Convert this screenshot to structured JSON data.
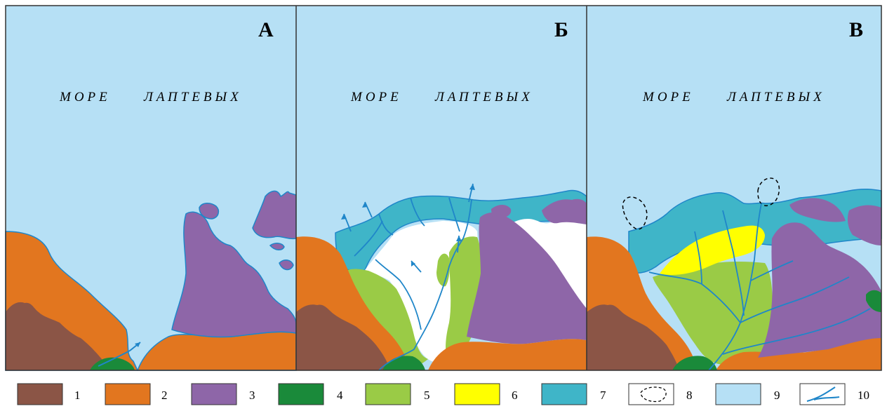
{
  "panels": [
    {
      "letter": "А",
      "sea_label_word1": "МОРЕ",
      "sea_label_word2": "ЛАПТЕВЫХ"
    },
    {
      "letter": "Б",
      "sea_label_word1": "МОРЕ",
      "sea_label_word2": "ЛАПТЕВЫХ"
    },
    {
      "letter": "В",
      "sea_label_word1": "МОРЕ",
      "sea_label_word2": "ЛАПТЕВЫХ"
    }
  ],
  "legend": [
    {
      "number": "1",
      "color": "#8b5546",
      "symbol": "brown-swatch"
    },
    {
      "number": "2",
      "color": "#e2761f",
      "symbol": "orange-swatch"
    },
    {
      "number": "3",
      "color": "#8e66a8",
      "symbol": "purple-swatch"
    },
    {
      "number": "4",
      "color": "#1a8a3a",
      "symbol": "dark-green-swatch"
    },
    {
      "number": "5",
      "color": "#9acb46",
      "symbol": "light-green-swatch"
    },
    {
      "number": "6",
      "color": "#ffff00",
      "symbol": "yellow-swatch"
    },
    {
      "number": "7",
      "color": "#3fb5c8",
      "symbol": "teal-swatch"
    },
    {
      "number": "8",
      "color": "#ffffff",
      "symbol": "dashed-contour"
    },
    {
      "number": "9",
      "color": "#b6e0f5",
      "symbol": "light-blue-swatch"
    },
    {
      "number": "10",
      "color": "#1f86c9",
      "symbol": "river-line"
    }
  ],
  "colors": {
    "sea": "#b6e0f5",
    "brown": "#8b5546",
    "orange": "#e2761f",
    "purple": "#8e66a8",
    "dark_green": "#1a8a3a",
    "light_green": "#9acb46",
    "yellow": "#ffff00",
    "teal": "#3fb5c8",
    "river": "#1f86c9",
    "border": "#333333"
  }
}
